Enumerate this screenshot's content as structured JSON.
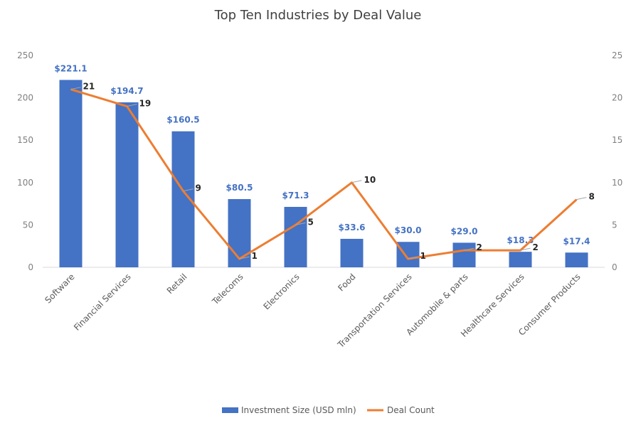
{
  "chart_data": {
    "type": "bar",
    "title": "Top Ten Industries by Deal Value",
    "categories": [
      "Software",
      "Financial Services",
      "Retail",
      "Telecoms",
      "Electronics",
      "Food",
      "Transportation Services",
      "Automobile & parts",
      "Healthcare Services",
      "Consumer Products"
    ],
    "series": [
      {
        "name": "Investment Size (USD mln)",
        "type": "bar",
        "axis": "left",
        "color": "#4472c4",
        "values": [
          221.1,
          194.7,
          160.5,
          80.5,
          71.3,
          33.6,
          30.0,
          29.0,
          18.3,
          17.4
        ],
        "labels": [
          "$221.1",
          "$194.7",
          "$160.5",
          "$80.5",
          "$71.3",
          "$33.6",
          "$30.0",
          "$29.0",
          "$18.3",
          "$17.4"
        ]
      },
      {
        "name": "Deal Count",
        "type": "line",
        "axis": "right",
        "color": "#ed7d31",
        "values": [
          21,
          19,
          9,
          1,
          5,
          10,
          1,
          2,
          2,
          8
        ],
        "labels": [
          "21",
          "19",
          "9",
          "1",
          "5",
          "10",
          "1",
          "2",
          "2",
          "8"
        ]
      }
    ],
    "y_left": {
      "min": 0,
      "max": 250,
      "ticks": [
        "0",
        "50",
        "100",
        "150",
        "200",
        "250"
      ]
    },
    "y_right": {
      "min": 0,
      "max": 25,
      "ticks": [
        "0",
        "5",
        "10",
        "15",
        "20",
        "25"
      ]
    },
    "grid": false,
    "legend": "bottom"
  }
}
